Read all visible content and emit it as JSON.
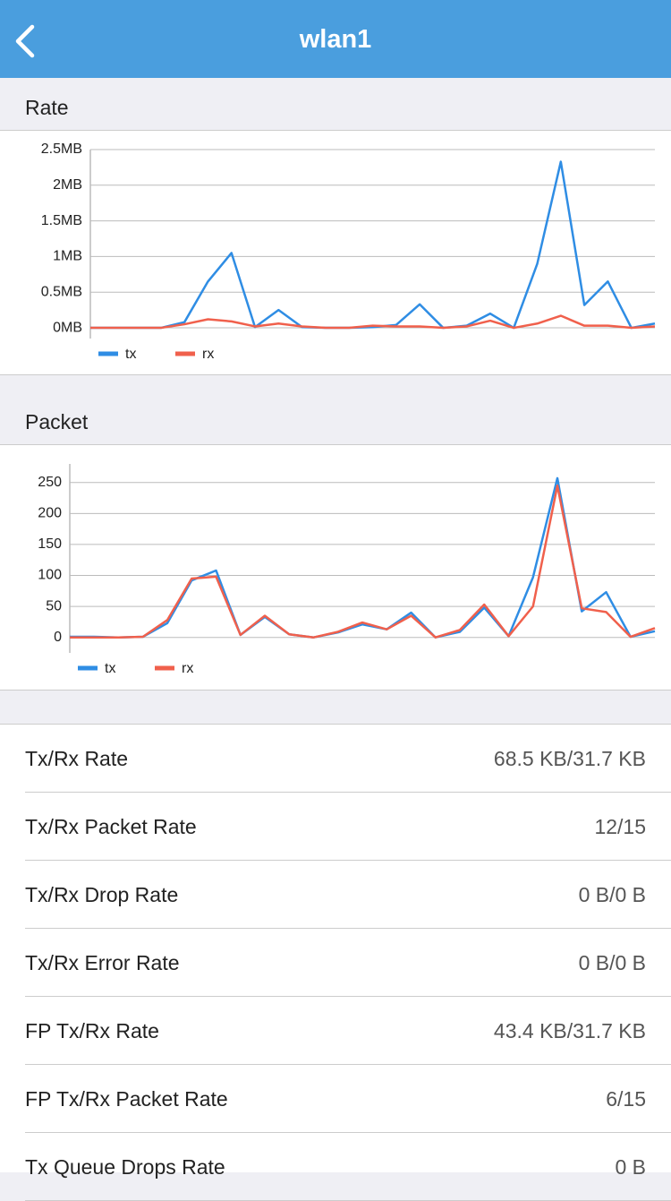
{
  "header": {
    "title": "wlan1"
  },
  "chart_data": [
    {
      "type": "line",
      "title": "Rate",
      "categories": [
        null,
        null,
        null,
        null,
        null,
        null,
        null,
        null,
        null,
        null,
        null,
        null,
        null,
        null,
        null,
        null,
        null,
        null,
        null,
        null,
        null,
        null,
        null,
        null,
        null
      ],
      "series": [
        {
          "name": "tx",
          "color": "#2f8de4",
          "values": [
            0,
            0,
            0,
            0,
            0.08,
            0.65,
            1.05,
            0.01,
            0.25,
            0.01,
            0,
            0,
            0.01,
            0.04,
            0.33,
            0,
            0.03,
            0.2,
            0,
            0.9,
            2.33,
            0.32,
            0.65,
            0,
            0.06
          ]
        },
        {
          "name": "rx",
          "color": "#f0604c",
          "values": [
            0,
            0,
            0,
            0,
            0.05,
            0.12,
            0.09,
            0.02,
            0.06,
            0.02,
            0,
            0,
            0.03,
            0.02,
            0.02,
            0,
            0.02,
            0.1,
            0,
            0.06,
            0.17,
            0.03,
            0.03,
            0,
            0.02
          ]
        }
      ],
      "ylim": [
        -0.15,
        2.5
      ],
      "yticks": [
        {
          "value": 0,
          "label": "0MB"
        },
        {
          "value": 0.5,
          "label": "0.5MB"
        },
        {
          "value": 1,
          "label": "1MB"
        },
        {
          "value": 1.5,
          "label": "1.5MB"
        },
        {
          "value": 2,
          "label": "2MB"
        },
        {
          "value": 2.5,
          "label": "2.5MB"
        }
      ],
      "grid": true
    },
    {
      "type": "line",
      "title": "Packet",
      "categories": [
        null,
        null,
        null,
        null,
        null,
        null,
        null,
        null,
        null,
        null,
        null,
        null,
        null,
        null,
        null,
        null,
        null,
        null,
        null,
        null,
        null,
        null,
        null,
        null,
        null
      ],
      "series": [
        {
          "name": "tx",
          "color": "#2f8de4",
          "values": [
            1,
            1,
            0,
            1,
            23,
            92,
            108,
            4,
            33,
            5,
            0,
            8,
            21,
            13,
            40,
            0,
            9,
            48,
            2,
            97,
            257,
            42,
            73,
            1,
            10
          ]
        },
        {
          "name": "rx",
          "color": "#f0604c",
          "values": [
            0,
            0,
            0,
            1,
            28,
            95,
            98,
            4,
            35,
            5,
            0,
            9,
            24,
            13,
            35,
            0,
            12,
            53,
            2,
            50,
            245,
            47,
            41,
            1,
            15
          ]
        }
      ],
      "ylim": [
        -25,
        280
      ],
      "yticks": [
        0,
        50,
        100,
        150,
        200,
        250
      ],
      "grid": true
    }
  ],
  "stats": [
    {
      "label": "Tx/Rx Rate",
      "value": "68.5 KB/31.7 KB"
    },
    {
      "label": "Tx/Rx Packet Rate",
      "value": "12/15"
    },
    {
      "label": "Tx/Rx Drop Rate",
      "value": "0 B/0 B"
    },
    {
      "label": "Tx/Rx Error Rate",
      "value": "0 B/0 B"
    },
    {
      "label": "FP Tx/Rx Rate",
      "value": "43.4 KB/31.7 KB"
    },
    {
      "label": "FP Tx/Rx Packet Rate",
      "value": "6/15"
    },
    {
      "label": "Tx Queue Drops Rate",
      "value": "0 B"
    }
  ]
}
